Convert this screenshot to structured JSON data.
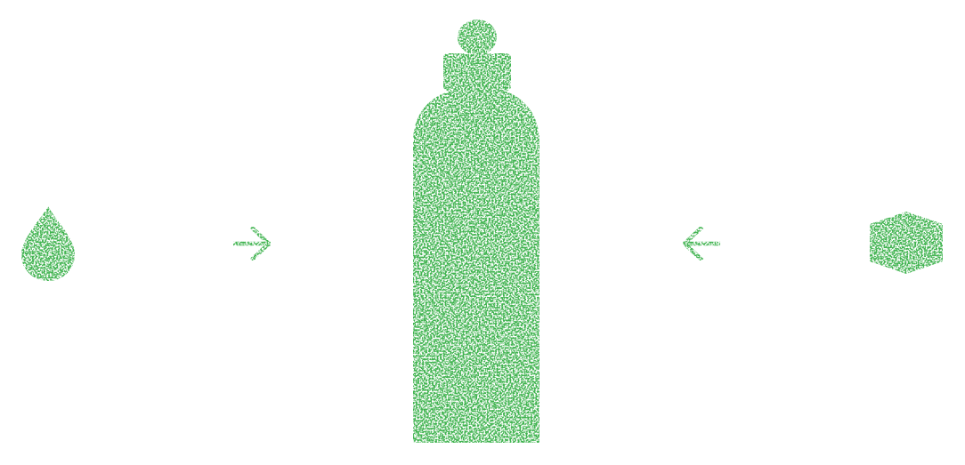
{
  "diagram": {
    "description_label": "",
    "accent_color": "#3fb34f",
    "background_color": "#ffffff",
    "elements": [
      {
        "name": "water-drop-icon",
        "role": "input"
      },
      {
        "name": "arrow-right-icon",
        "role": "flow"
      },
      {
        "name": "bottle-icon",
        "role": "product"
      },
      {
        "name": "arrow-left-icon",
        "role": "flow"
      },
      {
        "name": "hexagon-block-icon",
        "role": "input"
      }
    ]
  }
}
